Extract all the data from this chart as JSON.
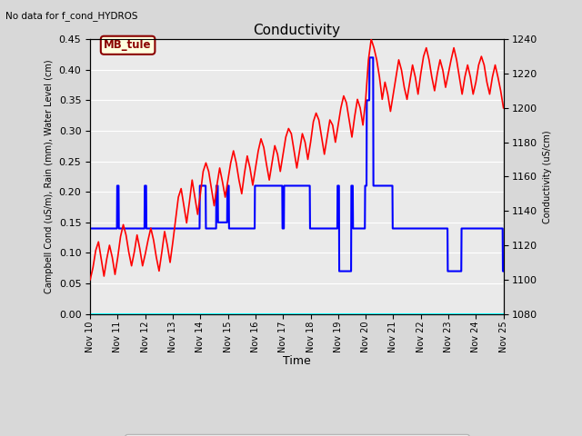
{
  "title": "Conductivity",
  "top_left_text": "No data for f_cond_HYDROS",
  "annotation_box": "MB_tule",
  "xlabel": "Time",
  "ylabel_left": "Campbell Cond (uS/m), Rain (mm), Water Level (cm)",
  "ylabel_right": "Conductivity (uS/cm)",
  "ylim_left": [
    0.0,
    0.45
  ],
  "ylim_right": [
    1080,
    1240
  ],
  "xlim": [
    10,
    25
  ],
  "xtick_positions": [
    10,
    11,
    12,
    13,
    14,
    15,
    16,
    17,
    18,
    19,
    20,
    21,
    22,
    23,
    24,
    25
  ],
  "xtick_labels": [
    "Nov 10",
    "Nov 11",
    "Nov 12",
    "Nov 13",
    "Nov 14",
    "Nov 15",
    "Nov 16",
    "Nov 17",
    "Nov 18",
    "Nov 19",
    "Nov 20",
    "Nov 21",
    "Nov 22",
    "Nov 23",
    "Nov 24",
    "Nov 25"
  ],
  "yticks_left": [
    0.0,
    0.05,
    0.1,
    0.15,
    0.2,
    0.25,
    0.3,
    0.35,
    0.4,
    0.45
  ],
  "yticks_right": [
    1080,
    1100,
    1120,
    1140,
    1160,
    1180,
    1200,
    1220,
    1240
  ],
  "fig_facecolor": "#d8d8d8",
  "ax_facecolor": "#eaeaea",
  "grid_color": "white",
  "water_level_x": [
    10.0,
    10.97,
    10.98,
    11.03,
    11.04,
    11.45,
    11.46,
    11.97,
    11.98,
    12.03,
    12.04,
    12.47,
    12.48,
    12.97,
    12.98,
    13.97,
    13.98,
    14.03,
    14.04,
    14.13,
    14.14,
    14.19,
    14.2,
    14.57,
    14.58,
    14.63,
    14.64,
    14.97,
    14.98,
    15.03,
    15.04,
    15.97,
    15.98,
    16.97,
    16.98,
    17.03,
    17.04,
    17.97,
    17.98,
    18.97,
    18.98,
    19.03,
    19.04,
    19.47,
    19.48,
    19.53,
    19.54,
    19.97,
    19.98,
    20.03,
    20.04,
    20.13,
    20.14,
    20.27,
    20.28,
    20.97,
    20.98,
    21.47,
    21.48,
    22.97,
    22.98,
    23.03,
    23.04,
    23.47,
    23.48,
    24.97,
    24.98,
    25.0
  ],
  "water_level_y": [
    0.14,
    0.14,
    0.21,
    0.21,
    0.14,
    0.14,
    0.14,
    0.14,
    0.21,
    0.21,
    0.14,
    0.14,
    0.14,
    0.14,
    0.14,
    0.14,
    0.21,
    0.21,
    0.21,
    0.21,
    0.21,
    0.21,
    0.14,
    0.14,
    0.21,
    0.21,
    0.15,
    0.15,
    0.21,
    0.21,
    0.14,
    0.14,
    0.21,
    0.21,
    0.14,
    0.14,
    0.21,
    0.21,
    0.14,
    0.14,
    0.21,
    0.21,
    0.07,
    0.07,
    0.21,
    0.21,
    0.14,
    0.14,
    0.21,
    0.21,
    0.35,
    0.35,
    0.42,
    0.42,
    0.21,
    0.21,
    0.14,
    0.14,
    0.14,
    0.14,
    0.07,
    0.07,
    0.07,
    0.07,
    0.14,
    0.14,
    0.07,
    0.07
  ],
  "campbell_x": [
    10.0,
    10.1,
    10.2,
    10.3,
    10.4,
    10.5,
    10.6,
    10.7,
    10.8,
    10.9,
    11.0,
    11.1,
    11.2,
    11.3,
    11.4,
    11.5,
    11.6,
    11.7,
    11.8,
    11.9,
    12.0,
    12.1,
    12.2,
    12.3,
    12.4,
    12.5,
    12.6,
    12.7,
    12.8,
    12.9,
    13.0,
    13.1,
    13.2,
    13.3,
    13.4,
    13.5,
    13.6,
    13.7,
    13.8,
    13.9,
    14.0,
    14.1,
    14.2,
    14.3,
    14.4,
    14.5,
    14.6,
    14.7,
    14.8,
    14.9,
    15.0,
    15.1,
    15.2,
    15.3,
    15.4,
    15.5,
    15.6,
    15.7,
    15.8,
    15.9,
    16.0,
    16.1,
    16.2,
    16.3,
    16.4,
    16.5,
    16.6,
    16.7,
    16.8,
    16.9,
    17.0,
    17.1,
    17.2,
    17.3,
    17.4,
    17.5,
    17.6,
    17.7,
    17.8,
    17.9,
    18.0,
    18.1,
    18.2,
    18.3,
    18.4,
    18.5,
    18.6,
    18.7,
    18.8,
    18.9,
    19.0,
    19.1,
    19.2,
    19.3,
    19.4,
    19.5,
    19.6,
    19.7,
    19.8,
    19.9,
    20.0,
    20.1,
    20.2,
    20.3,
    20.4,
    20.5,
    20.6,
    20.7,
    20.8,
    20.9,
    21.0,
    21.1,
    21.2,
    21.3,
    21.4,
    21.5,
    21.6,
    21.7,
    21.8,
    21.9,
    22.0,
    22.1,
    22.2,
    22.3,
    22.4,
    22.5,
    22.6,
    22.7,
    22.8,
    22.9,
    23.0,
    23.1,
    23.2,
    23.3,
    23.4,
    23.5,
    23.6,
    23.7,
    23.8,
    23.9,
    24.0,
    24.1,
    24.2,
    24.3,
    24.4,
    24.5,
    24.6,
    24.7,
    24.8,
    24.9,
    25.0
  ],
  "campbell_y": [
    1100,
    1107,
    1117,
    1122,
    1112,
    1102,
    1112,
    1120,
    1113,
    1103,
    1113,
    1125,
    1132,
    1126,
    1116,
    1108,
    1116,
    1126,
    1118,
    1108,
    1115,
    1123,
    1130,
    1123,
    1113,
    1105,
    1116,
    1128,
    1120,
    1110,
    1122,
    1135,
    1148,
    1153,
    1143,
    1133,
    1145,
    1158,
    1148,
    1138,
    1150,
    1163,
    1168,
    1163,
    1153,
    1143,
    1155,
    1165,
    1157,
    1148,
    1158,
    1168,
    1175,
    1168,
    1158,
    1150,
    1162,
    1172,
    1165,
    1155,
    1165,
    1175,
    1182,
    1177,
    1167,
    1158,
    1168,
    1178,
    1173,
    1163,
    1173,
    1183,
    1188,
    1185,
    1175,
    1165,
    1175,
    1185,
    1180,
    1170,
    1180,
    1192,
    1197,
    1193,
    1183,
    1173,
    1183,
    1193,
    1190,
    1180,
    1190,
    1200,
    1207,
    1203,
    1193,
    1183,
    1195,
    1205,
    1200,
    1190,
    1205,
    1228,
    1240,
    1235,
    1228,
    1218,
    1205,
    1215,
    1208,
    1198,
    1208,
    1218,
    1228,
    1222,
    1212,
    1205,
    1215,
    1225,
    1218,
    1208,
    1220,
    1230,
    1235,
    1228,
    1218,
    1210,
    1220,
    1228,
    1222,
    1212,
    1220,
    1228,
    1235,
    1228,
    1218,
    1208,
    1218,
    1225,
    1218,
    1208,
    1215,
    1225,
    1230,
    1225,
    1215,
    1208,
    1218,
    1225,
    1218,
    1210,
    1200
  ]
}
